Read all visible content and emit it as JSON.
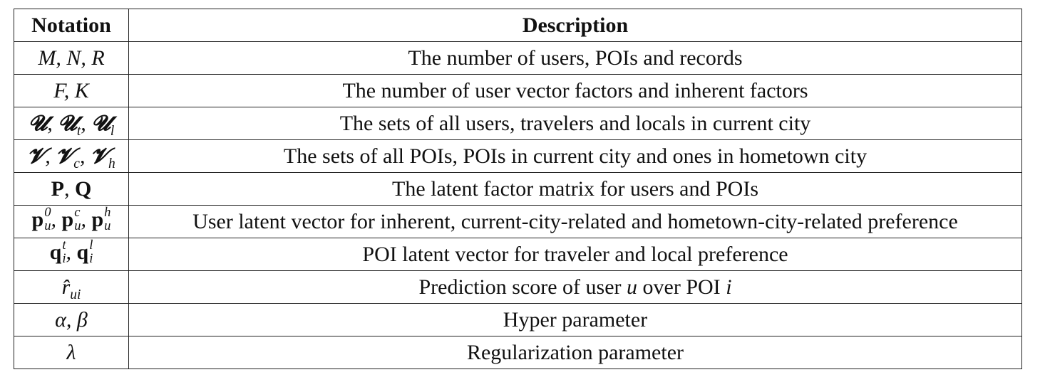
{
  "header": {
    "notation": "Notation",
    "description": "Description"
  },
  "rows": [
    {
      "notation": "M, N, R",
      "description": "The number of users, POIs and records"
    },
    {
      "notation": "F, K",
      "description": "The number of user vector factors and inherent factors"
    },
    {
      "notation": "𝓤, 𝓤t, 𝓤l",
      "description": "The sets of all users, travelers and locals in current city"
    },
    {
      "notation": "𝓥, 𝓥c, 𝓥h",
      "description": "The sets of all POIs, POIs in current city and ones in hometown city"
    },
    {
      "notation": "P, Q",
      "description": "The latent factor matrix for users and POIs"
    },
    {
      "notation": "pu0, puc, puh",
      "description": "User latent vector for inherent, current-city-related and hometown-city-related preference"
    },
    {
      "notation": "qit, qil",
      "description": "POI latent vector for traveler and local preference"
    },
    {
      "notation": "r̂ui",
      "description_parts": [
        "Prediction score of user ",
        "u",
        " over POI ",
        "i"
      ]
    },
    {
      "notation": "α, β",
      "description": "Hyper parameter"
    },
    {
      "notation": "λ",
      "description": "Regularization parameter"
    }
  ]
}
